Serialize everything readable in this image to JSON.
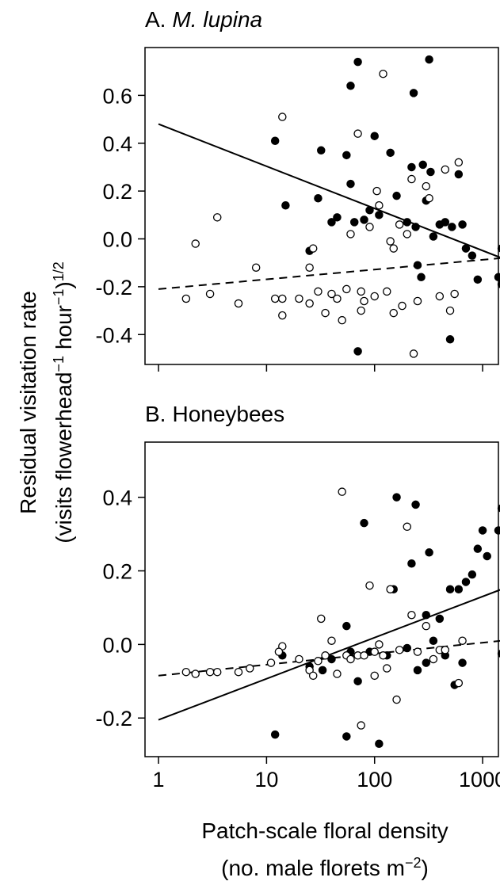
{
  "chart_data": [
    {
      "type": "scatter",
      "panel": "A.",
      "title": "M. lupina",
      "title_style": "italic",
      "log_x": true,
      "xlim": [
        0.75,
        1400
      ],
      "xticks": [
        1,
        10,
        100,
        1000
      ],
      "ylim": [
        -0.525,
        0.8
      ],
      "yticks": [
        -0.4,
        -0.2,
        {
          "value": 0,
          "label": "0.0"
        },
        0.2,
        0.4,
        0.6
      ],
      "series": [
        {
          "color": "#000000",
          "filled": true,
          "x": [
            12,
            15,
            25,
            30,
            32,
            40,
            45,
            55,
            60,
            60,
            65,
            70,
            70,
            80,
            90,
            100,
            110,
            140,
            160,
            200,
            220,
            230,
            240,
            250,
            280,
            300,
            320,
            330,
            350,
            400,
            450,
            500,
            520,
            600,
            650,
            700,
            800,
            900,
            1400,
            1500,
            1500,
            270
          ],
          "values": [
            0.41,
            0.14,
            -0.05,
            0.17,
            0.37,
            0.07,
            0.09,
            0.35,
            0.64,
            0.23,
            0.07,
            0.74,
            -0.47,
            0.08,
            0.12,
            0.43,
            0.1,
            0.36,
            0.18,
            0.07,
            0.3,
            0.61,
            0.05,
            -0.11,
            0.31,
            0.16,
            0.75,
            0.28,
            0.01,
            0.06,
            0.07,
            -0.42,
            0.05,
            0.27,
            0.06,
            -0.04,
            -0.07,
            -0.17,
            -0.16,
            -0.19,
            -0.04,
            -0.16
          ]
        },
        {
          "color": "#000000",
          "filled": false,
          "x": [
            1.8,
            2.2,
            3,
            3.5,
            5.5,
            8,
            12,
            14,
            14,
            14,
            20,
            25,
            25,
            27,
            30,
            35,
            40,
            45,
            50,
            55,
            60,
            70,
            75,
            80,
            90,
            100,
            105,
            110,
            120,
            130,
            140,
            150,
            170,
            180,
            200,
            220,
            230,
            250,
            300,
            320,
            400,
            450,
            500,
            550,
            600,
            150,
            75
          ],
          "values": [
            -0.25,
            -0.02,
            -0.23,
            0.09,
            -0.27,
            -0.12,
            -0.25,
            0.51,
            -0.32,
            -0.25,
            -0.25,
            -0.27,
            -0.12,
            -0.04,
            -0.22,
            -0.31,
            -0.23,
            -0.25,
            -0.34,
            -0.21,
            0.02,
            0.44,
            -0.3,
            -0.26,
            0.05,
            -0.24,
            0.2,
            0.14,
            0.69,
            -0.22,
            -0.01,
            -0.31,
            0.06,
            -0.28,
            0.02,
            0.25,
            -0.48,
            -0.26,
            0.22,
            0.17,
            -0.24,
            0.29,
            -0.3,
            -0.23,
            0.32,
            -0.04,
            -0.22
          ]
        }
      ],
      "lines": [
        {
          "dashed": false,
          "x": [
            1,
            1500
          ],
          "values": [
            0.48,
            -0.08
          ]
        },
        {
          "dashed": true,
          "x": [
            1,
            1500
          ],
          "values": [
            -0.21,
            -0.08
          ]
        }
      ]
    },
    {
      "type": "scatter",
      "panel": "B.",
      "title": "Honeybees",
      "title_style": "normal",
      "log_x": true,
      "xlim": [
        0.75,
        1400
      ],
      "xticks": [
        1,
        10,
        100,
        1000
      ],
      "ylim": [
        -0.305,
        0.55
      ],
      "yticks": [
        -0.2,
        {
          "value": 0,
          "label": "0.0"
        },
        0.2,
        0.4
      ],
      "series": [
        {
          "color": "#000000",
          "filled": true,
          "x": [
            12,
            14,
            25,
            33,
            40,
            55,
            55,
            60,
            70,
            80,
            110,
            130,
            150,
            160,
            200,
            220,
            240,
            250,
            300,
            320,
            350,
            400,
            450,
            500,
            550,
            600,
            650,
            700,
            800,
            900,
            1000,
            1100,
            1400,
            1500,
            1500,
            300,
            90
          ],
          "values": [
            -0.245,
            -0.03,
            -0.06,
            -0.07,
            -0.04,
            0.05,
            -0.25,
            -0.02,
            -0.1,
            0.33,
            -0.27,
            -0.03,
            0.15,
            0.4,
            -0.01,
            0.22,
            0.38,
            -0.07,
            0.08,
            0.25,
            0.01,
            0.07,
            -0.03,
            0.15,
            -0.11,
            0.15,
            -0.05,
            0.17,
            0.19,
            0.26,
            0.31,
            0.24,
            0.31,
            0.37,
            -0.025,
            -0.05,
            -0.02
          ]
        },
        {
          "color": "#000000",
          "filled": false,
          "x": [
            1.8,
            2.2,
            3,
            3.5,
            5.5,
            7,
            11,
            14,
            13,
            20,
            25,
            27,
            30,
            32,
            35,
            40,
            45,
            50,
            55,
            60,
            70,
            75,
            80,
            90,
            100,
            110,
            120,
            130,
            140,
            160,
            170,
            200,
            220,
            250,
            300,
            350,
            400,
            600,
            650,
            450,
            100
          ],
          "values": [
            -0.075,
            -0.08,
            -0.075,
            -0.075,
            -0.075,
            -0.065,
            -0.05,
            -0.005,
            -0.02,
            -0.04,
            -0.07,
            -0.085,
            -0.045,
            0.07,
            -0.03,
            0.01,
            -0.08,
            0.415,
            -0.03,
            -0.04,
            -0.03,
            -0.22,
            -0.03,
            0.16,
            -0.085,
            0.0,
            -0.03,
            -0.065,
            0.15,
            -0.15,
            -0.015,
            0.32,
            0.08,
            -0.02,
            0.05,
            -0.04,
            -0.015,
            -0.105,
            0.01,
            -0.015,
            -0.02
          ]
        }
      ],
      "lines": [
        {
          "dashed": false,
          "x": [
            1,
            1500
          ],
          "values": [
            -0.205,
            0.15
          ]
        },
        {
          "dashed": true,
          "x": [
            1,
            100,
            1500
          ],
          "values": [
            -0.085,
            -0.025,
            0.01
          ]
        }
      ]
    }
  ],
  "y_label": {
    "line1": "Residual visitation rate",
    "line2": [
      "(visits flowerhead",
      "−1",
      " hour",
      "−1",
      ")",
      "1/2"
    ]
  },
  "x_label": {
    "line1": "Patch-scale floral density",
    "line2": [
      "(no. male florets m",
      "−2",
      ")"
    ]
  }
}
